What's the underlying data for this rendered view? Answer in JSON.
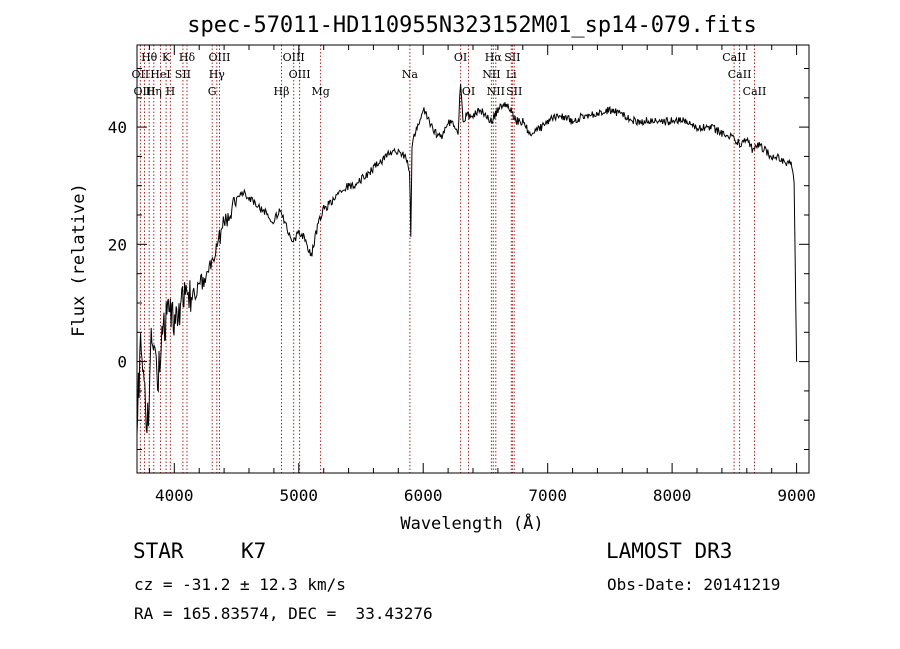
{
  "chart_data": {
    "type": "line",
    "title": "spec-57011-HD110955N323152M01_sp14-079.fits",
    "xlabel": "Wavelength (Å)",
    "ylabel": "Flux (relative)",
    "xlim": [
      3700,
      9100
    ],
    "ylim": [
      -19,
      54
    ],
    "x_ticks": [
      4000,
      5000,
      6000,
      7000,
      8000,
      9000
    ],
    "x_tick_labels": [
      "4000",
      "5000",
      "6000",
      "7000",
      "8000",
      "9000"
    ],
    "y_ticks": [
      0,
      20,
      40
    ],
    "y_tick_labels": [
      "0",
      "20",
      "40"
    ],
    "grid": false,
    "series": [
      {
        "name": "flux",
        "x": [
          3700,
          3740,
          3780,
          3820,
          3860,
          3900,
          3940,
          3980,
          4020,
          4060,
          4100,
          4150,
          4200,
          4250,
          4300,
          4350,
          4400,
          4450,
          4500,
          4550,
          4600,
          4650,
          4700,
          4750,
          4800,
          4850,
          4900,
          4950,
          5000,
          5050,
          5100,
          5150,
          5200,
          5250,
          5300,
          5350,
          5400,
          5450,
          5500,
          5550,
          5600,
          5650,
          5700,
          5750,
          5800,
          5850,
          5890,
          5900,
          5910,
          5950,
          6000,
          6050,
          6100,
          6150,
          6200,
          6250,
          6280,
          6300,
          6320,
          6350,
          6400,
          6450,
          6500,
          6550,
          6600,
          6650,
          6700,
          6750,
          6800,
          6850,
          6900,
          6950,
          7000,
          7100,
          7200,
          7300,
          7400,
          7500,
          7600,
          7700,
          7800,
          7900,
          8000,
          8100,
          8200,
          8300,
          8400,
          8500,
          8550,
          8600,
          8650,
          8700,
          8750,
          8800,
          8850,
          8900,
          8950,
          8980,
          9000
        ],
        "y": [
          -8,
          4,
          -12,
          6,
          -4,
          2,
          8,
          6,
          10,
          9,
          12,
          11,
          13,
          14,
          17,
          20,
          24,
          25,
          28,
          29,
          28,
          27,
          26,
          25,
          24,
          26,
          23,
          20,
          22,
          21,
          18,
          23,
          26,
          27,
          28,
          29,
          30,
          30,
          31,
          32,
          33,
          34,
          35,
          36,
          36,
          35,
          33,
          21,
          37,
          40,
          43,
          41,
          39,
          38,
          41,
          40,
          39,
          48,
          41,
          42,
          42,
          43,
          42,
          41,
          43,
          44,
          43,
          41,
          41,
          39,
          39,
          40,
          41,
          42,
          41,
          42,
          42,
          43,
          42,
          41,
          41,
          41,
          41,
          41,
          40,
          40,
          39,
          38,
          37,
          38,
          36,
          37,
          36,
          35,
          35,
          34,
          34,
          31,
          0
        ]
      }
    ],
    "line_markers": [
      {
        "label": "Hθ",
        "wavelength": 3798
      },
      {
        "label": "OII",
        "wavelength": 3727
      },
      {
        "label": "OIII",
        "wavelength": 3760
      },
      {
        "label": "HeI",
        "wavelength": 3889
      },
      {
        "label": "Hη",
        "wavelength": 3835
      },
      {
        "label": "K",
        "wavelength": 3934
      },
      {
        "label": "H",
        "wavelength": 3968
      },
      {
        "label": "SII",
        "wavelength": 4069
      },
      {
        "label": "Hδ",
        "wavelength": 4102
      },
      {
        "label": "OIII",
        "wavelength": 4363
      },
      {
        "label": "Hγ",
        "wavelength": 4341
      },
      {
        "label": "G",
        "wavelength": 4304
      },
      {
        "label": "Hβ",
        "wavelength": 4861
      },
      {
        "label": "OIII",
        "wavelength": 4959
      },
      {
        "label": "OIII",
        "wavelength": 5007
      },
      {
        "label": "Mg",
        "wavelength": 5175
      },
      {
        "label": "Na",
        "wavelength": 5893
      },
      {
        "label": "OI",
        "wavelength": 6300
      },
      {
        "label": "OI",
        "wavelength": 6364
      },
      {
        "label": "NII",
        "wavelength": 6548
      },
      {
        "label": "Hα",
        "wavelength": 6563
      },
      {
        "label": "NII",
        "wavelength": 6583
      },
      {
        "label": "Li",
        "wavelength": 6708
      },
      {
        "label": "SII",
        "wavelength": 6717
      },
      {
        "label": "SII",
        "wavelength": 6731
      },
      {
        "label": "CaII",
        "wavelength": 8498
      },
      {
        "label": "CaII",
        "wavelength": 8542
      },
      {
        "label": "CaII",
        "wavelength": 8662
      }
    ],
    "colors": {
      "spectrum": "#000000",
      "marker_lines": "#b22222",
      "axes": "#000000"
    }
  },
  "info": {
    "object_class": "STAR",
    "subclass": "K7",
    "cz": "cz = -31.2 ± 12.3 km/s",
    "coords": "RA = 165.83574, DEC =  33.43276",
    "survey": "LAMOST DR3",
    "obs_date": "Obs-Date: 20141219"
  }
}
